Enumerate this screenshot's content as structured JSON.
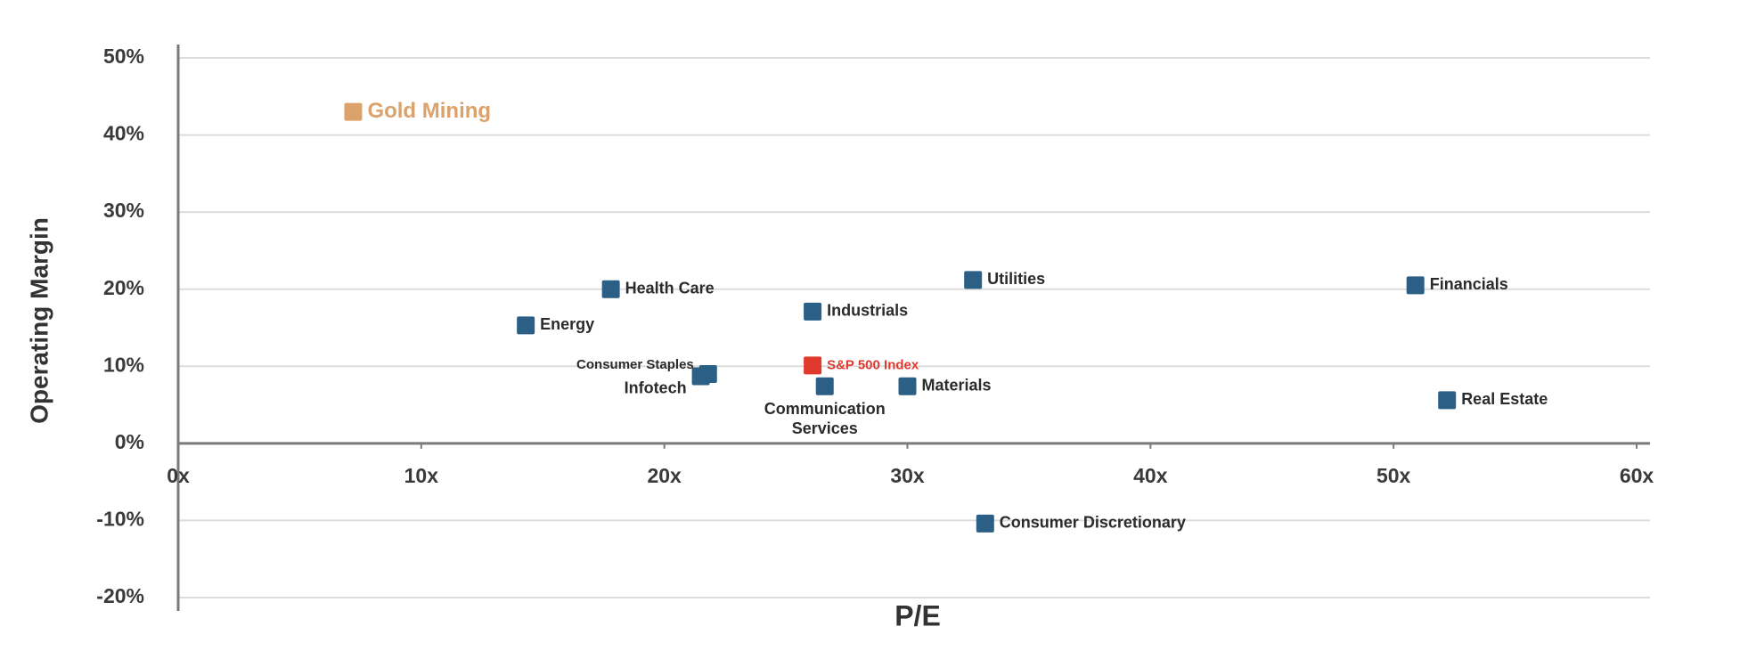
{
  "chart_data": {
    "type": "scatter",
    "x_label": "P/E",
    "y_label": "Operating Margin",
    "point_labels": [
      "Gold Mining",
      "Health Care",
      "Energy",
      "Consumer Staples",
      "Infotech",
      "Industrials",
      "S&P 500 Index",
      "Communication Services",
      "Materials",
      "Utilities",
      "Consumer Discretionary",
      "Financials",
      "Real Estate"
    ],
    "x": [
      7.2,
      17.8,
      14.3,
      21.8,
      21.5,
      26.1,
      26.1,
      26.6,
      30.0,
      32.7,
      33.2,
      50.9,
      52.2
    ],
    "values": [
      43,
      20,
      15.3,
      9.0,
      8.7,
      17.1,
      10.1,
      7.4,
      7.4,
      21.2,
      -10.4,
      20.5,
      5.6
    ],
    "colors": [
      "#dba26b",
      "#2b5f86",
      "#2b5f86",
      "#2b5f86",
      "#2b5f86",
      "#2b5f86",
      "#e0392e",
      "#2b5f86",
      "#2b5f86",
      "#2b5f86",
      "#2b5f86",
      "#2b5f86",
      "#2b5f86"
    ],
    "xlim": [
      0,
      60
    ],
    "xticks": [
      {
        "value": 0,
        "label": "0x"
      },
      {
        "value": 10,
        "label": "10x"
      },
      {
        "value": 20,
        "label": "20x"
      },
      {
        "value": 30,
        "label": "30x"
      },
      {
        "value": 40,
        "label": "40x"
      },
      {
        "value": 50,
        "label": "50x"
      },
      {
        "value": 60,
        "label": "60x"
      }
    ],
    "ylim": [
      -20,
      50
    ],
    "yticks": [
      {
        "value": -20,
        "label": "-20%"
      },
      {
        "value": -10,
        "label": "-10%"
      },
      {
        "value": 0,
        "label": "0%"
      },
      {
        "value": 10,
        "label": "10%"
      },
      {
        "value": 20,
        "label": "20%"
      },
      {
        "value": 30,
        "label": "30%"
      },
      {
        "value": 40,
        "label": "40%"
      },
      {
        "value": 50,
        "label": "50%"
      }
    ],
    "grid": true
  }
}
